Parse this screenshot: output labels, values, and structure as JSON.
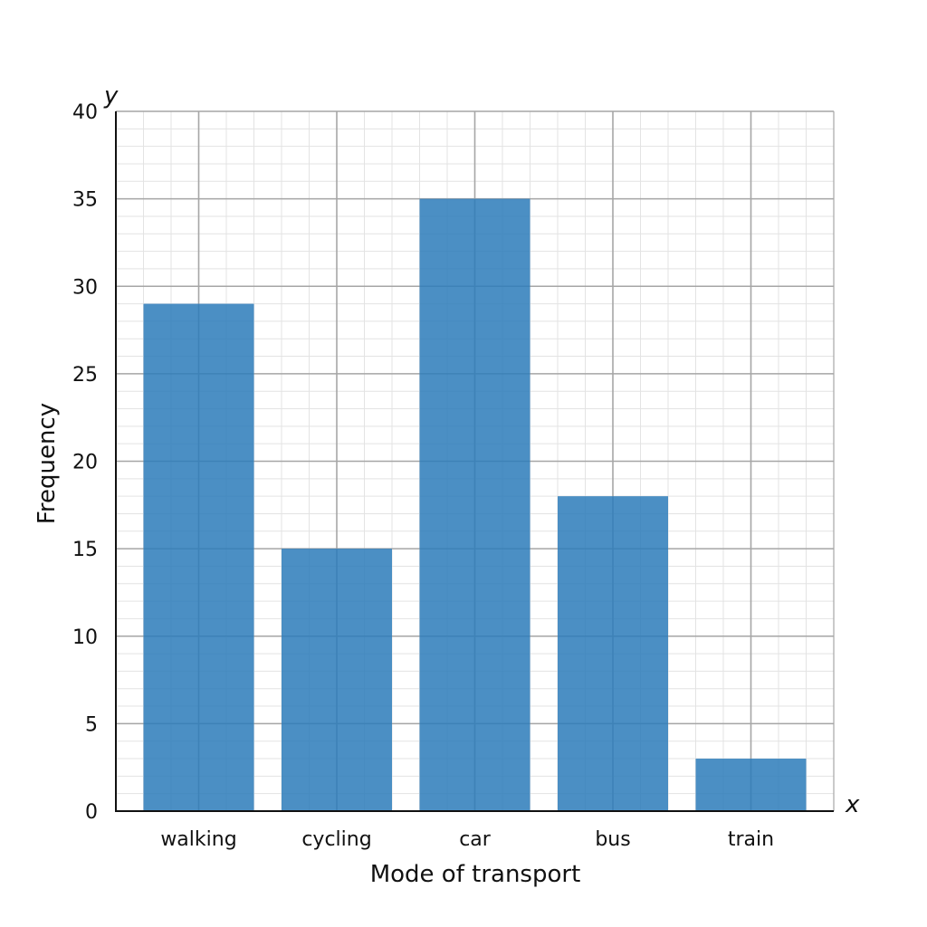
{
  "chart_data": {
    "type": "bar",
    "title": "",
    "xlabel": "Mode of transport",
    "ylabel": "Frequency",
    "x_axis_letter": "x",
    "y_axis_letter": "y",
    "categories": [
      "walking",
      "cycling",
      "car",
      "bus",
      "train"
    ],
    "values": [
      29,
      15,
      35,
      18,
      3
    ],
    "ylim": [
      0,
      40
    ],
    "y_ticks": [
      0,
      5,
      10,
      15,
      20,
      25,
      30,
      35,
      40
    ],
    "y_minor_step": 1,
    "grid": true,
    "legend": "none",
    "colors": {
      "bar": "#2b7bba",
      "major_grid": "#a6a6a6",
      "minor_grid": "#e3e3e3",
      "axis": "#111111"
    }
  }
}
